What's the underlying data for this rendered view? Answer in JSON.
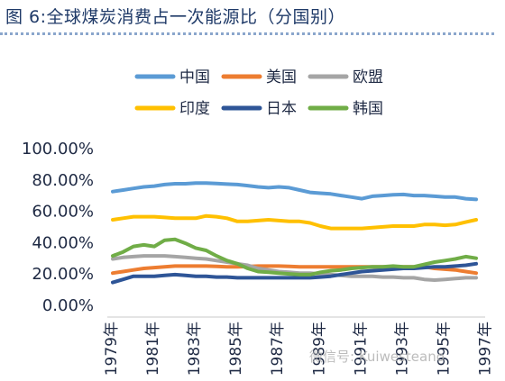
{
  "page_title": "图 6:全球煤炭消费占一次能源比（分国别）",
  "watermark": "微信号: Kuiwesteano",
  "chart_data": {
    "type": "line",
    "title": "图 6:全球煤炭消费占一次能源比（分国别）",
    "xlabel": "",
    "ylabel": "",
    "ylim": [
      0,
      100
    ],
    "yticks": [
      "100.00%",
      "80.00%",
      "60.00%",
      "40.00%",
      "20.00%",
      "0.00%"
    ],
    "ytick_values": [
      100,
      80,
      60,
      40,
      20,
      0
    ],
    "xtick_labels": [
      "1979年",
      "1981年",
      "1983年",
      "1985年",
      "1987年",
      "1989年",
      "1991年",
      "1993年",
      "1995年",
      "1997年"
    ],
    "grid": false,
    "legend_position": "top",
    "x": [
      1979,
      1979.5,
      1980,
      1980.5,
      1981,
      1981.5,
      1982,
      1982.5,
      1983,
      1983.5,
      1984,
      1984.5,
      1985,
      1985.5,
      1986,
      1986.5,
      1987,
      1987.5,
      1988,
      1988.5,
      1989,
      1989.5,
      1990,
      1990.5,
      1991,
      1991.5,
      1992,
      1992.5,
      1993,
      1993.5,
      1994,
      1994.5,
      1995,
      1995.5,
      1996,
      1996.5
    ],
    "series": [
      {
        "name": "中国",
        "color": "#5b9bd5",
        "values": [
          72,
          73,
          74,
          75,
          75.5,
          76.5,
          77,
          77,
          77.5,
          77.5,
          77.2,
          76.8,
          76.5,
          75.8,
          75,
          74.5,
          75,
          74.5,
          73,
          71.5,
          71,
          70.5,
          69.5,
          68.5,
          67.5,
          69,
          69.5,
          70,
          70.2,
          69.5,
          69.5,
          69,
          68.5,
          68.5,
          67.5,
          67
        ]
      },
      {
        "name": "美国",
        "color": "#ed7d31",
        "values": [
          20,
          21,
          22,
          23,
          23.5,
          24,
          24.5,
          24.5,
          24.5,
          24.5,
          24.3,
          24,
          24,
          24.2,
          24.5,
          24.5,
          24.5,
          24.3,
          24,
          24,
          24,
          24,
          24,
          24,
          24,
          24,
          24,
          24,
          24,
          24,
          24,
          23,
          22.5,
          22,
          21,
          20
        ]
      },
      {
        "name": "欧盟",
        "color": "#a5a5a5",
        "values": [
          29,
          30,
          30.5,
          31,
          31,
          31,
          30.5,
          30,
          29.5,
          29,
          28,
          27,
          26,
          25,
          23,
          22,
          21,
          20.5,
          20,
          20,
          19.5,
          19,
          18.5,
          18,
          18,
          18,
          17.5,
          17.5,
          17,
          17,
          16,
          15.5,
          16,
          16.5,
          17,
          17
        ]
      },
      {
        "name": "印度",
        "color": "#ffc000",
        "values": [
          54,
          55,
          56,
          56,
          56,
          55.5,
          55,
          55,
          55,
          56.5,
          56,
          55,
          53,
          53,
          53.5,
          54,
          53.5,
          53,
          53,
          52,
          50,
          48.5,
          48.5,
          48.5,
          48.5,
          49,
          49.5,
          50,
          50,
          50,
          51,
          51,
          50.5,
          51,
          52.5,
          54
        ]
      },
      {
        "name": "日本",
        "color": "#2e5597",
        "values": [
          14,
          16,
          18,
          18,
          18,
          18.5,
          19,
          18.5,
          18,
          18,
          17.5,
          17.5,
          17,
          17,
          17,
          17,
          17,
          17,
          17,
          17,
          17.5,
          18,
          19,
          20,
          21,
          21.5,
          22,
          22.5,
          23,
          23,
          23.5,
          24,
          24,
          24.5,
          25,
          26
        ]
      },
      {
        "name": "韩国",
        "color": "#70ad47",
        "values": [
          31,
          33.5,
          37,
          38,
          37,
          41,
          41.5,
          39,
          36,
          34.5,
          31,
          28,
          26,
          23,
          21,
          20.5,
          20,
          19.5,
          19,
          19,
          20.5,
          21.5,
          22,
          23,
          23.5,
          24,
          24,
          24.5,
          24,
          24,
          25.5,
          27,
          28,
          29,
          30.5,
          29.5
        ]
      }
    ]
  }
}
